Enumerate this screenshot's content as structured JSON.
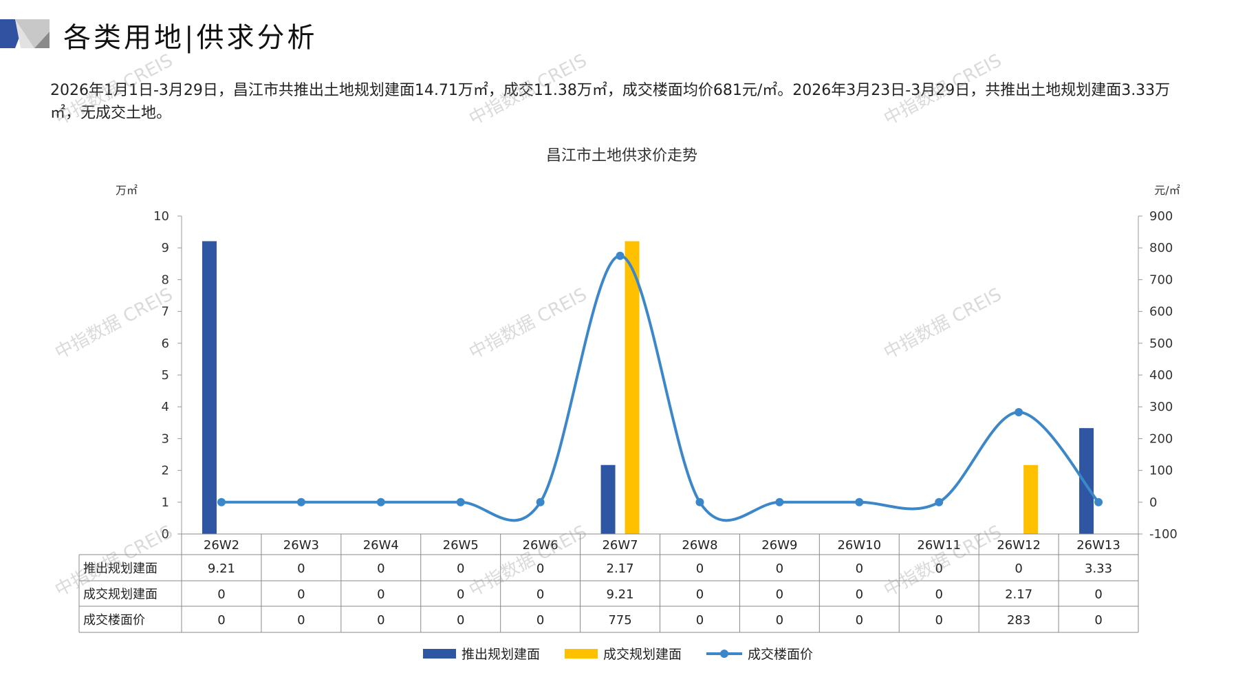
{
  "header": {
    "title": "各类用地|供求分析",
    "icon": "slanted-blue-gray-banner-icon"
  },
  "summary": "2026年1月1日-3月29日，昌江市共推出土地规划建面14.71万㎡，成交11.38万㎡，成交楼面均价681元/㎡。2026年3月23日-3月29日，共推出土地规划建面3.33万㎡，无成交土地。",
  "watermark": "中指数据 CREIS",
  "colors": {
    "supply": "#2F56A3",
    "deal": "#FFC000",
    "price": "#3B87C9"
  },
  "chart_data": {
    "type": "bar+line",
    "title": "昌江市土地供求价走势",
    "ylabel_left": "万㎡",
    "ylabel_right": "元/㎡",
    "ylim_left": [
      0,
      10
    ],
    "ylim_right": [
      -100,
      900
    ],
    "yticks_left": [
      0,
      1,
      2,
      3,
      4,
      5,
      6,
      7,
      8,
      9,
      10
    ],
    "yticks_right": [
      -100,
      0,
      100,
      200,
      300,
      400,
      500,
      600,
      700,
      800,
      900
    ],
    "categories": [
      "26W2",
      "26W3",
      "26W4",
      "26W5",
      "26W6",
      "26W7",
      "26W8",
      "26W9",
      "26W10",
      "26W11",
      "26W12",
      "26W13"
    ],
    "series": [
      {
        "name": "推出规划建面",
        "type": "bar",
        "axis": "left",
        "values": [
          "9.21",
          "0",
          "0",
          "0",
          "0",
          "2.17",
          "0",
          "0",
          "0",
          "0",
          "0",
          "3.33"
        ]
      },
      {
        "name": "成交规划建面",
        "type": "bar",
        "axis": "left",
        "values": [
          "0",
          "0",
          "0",
          "0",
          "0",
          "9.21",
          "0",
          "0",
          "0",
          "0",
          "2.17",
          "0"
        ]
      },
      {
        "name": "成交楼面价",
        "type": "line",
        "smooth": true,
        "axis": "right",
        "values": [
          "0",
          "0",
          "0",
          "0",
          "0",
          "775",
          "0",
          "0",
          "0",
          "0",
          "283",
          "0"
        ]
      }
    ],
    "data_table": true,
    "legend_position": "bottom",
    "grid": false
  }
}
